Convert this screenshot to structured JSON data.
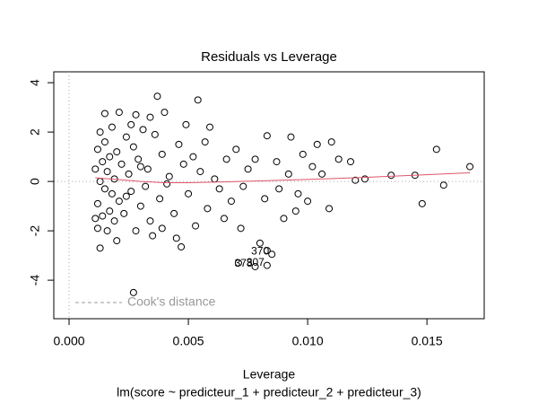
{
  "chart_data": {
    "type": "scatter",
    "title": "Residuals vs Leverage",
    "x_label": "Leverage",
    "subtitle": "lm(score ~ predicteur_1 + predicteur_2 + predicteur_3)",
    "x": [
      0.0037,
      0.0054,
      0.0015,
      0.0021,
      0.0028,
      0.004,
      0.0049,
      0.0059,
      0.0083,
      0.0093,
      0.0104,
      0.011,
      0.0154,
      0.0168,
      0.0145,
      0.0135,
      0.0124,
      0.012,
      0.0157,
      0.0148,
      0.0109,
      0.0095,
      0.008,
      0.0085,
      0.0078,
      0.0083,
      0.0083,
      0.0027,
      0.0012,
      0.0013,
      0.002,
      0.0035,
      0.0047,
      0.0065,
      0.0072,
      0.009,
      0.01,
      0.0102,
      0.0092,
      0.0087,
      0.0098,
      0.0113,
      0.0118,
      0.0106,
      0.007,
      0.0066,
      0.0075,
      0.0063,
      0.0068,
      0.0058,
      0.0055,
      0.0052,
      0.005,
      0.0046,
      0.0044,
      0.0042,
      0.0039,
      0.0038,
      0.0036,
      0.0034,
      0.0033,
      0.0032,
      0.0031,
      0.003,
      0.0029,
      0.0028,
      0.0027,
      0.0026,
      0.0025,
      0.0024,
      0.0023,
      0.0022,
      0.0021,
      0.002,
      0.0019,
      0.0019,
      0.0018,
      0.0018,
      0.0017,
      0.0017,
      0.0016,
      0.0016,
      0.0015,
      0.0015,
      0.0014,
      0.0014,
      0.0013,
      0.0013,
      0.0012,
      0.0012,
      0.0011,
      0.0011,
      0.0024,
      0.003,
      0.0041,
      0.0048,
      0.0053,
      0.0061,
      0.0057,
      0.0073,
      0.0078,
      0.0082,
      0.0088,
      0.0096,
      0.0026,
      0.0034,
      0.0045,
      0.0039,
      0.0071
    ],
    "values": [
      3.45,
      3.3,
      2.75,
      2.8,
      2.7,
      2.8,
      2.3,
      2.2,
      1.85,
      1.8,
      1.5,
      1.6,
      1.3,
      0.6,
      0.25,
      0.25,
      0.1,
      0.05,
      -0.15,
      -0.9,
      -1.1,
      -1.2,
      -2.5,
      -2.95,
      -3.45,
      -3.4,
      -2.8,
      -4.5,
      -1.9,
      -2.7,
      -2.4,
      -2.2,
      -2.65,
      -1.5,
      -1.9,
      -1.5,
      -0.8,
      0.6,
      0.3,
      0.8,
      1.1,
      0.9,
      0.8,
      0.3,
      1.3,
      0.9,
      0.5,
      -0.3,
      -0.8,
      -1.1,
      0.4,
      1.0,
      -0.5,
      1.5,
      -1.3,
      0.2,
      1.1,
      -0.7,
      1.9,
      -1.6,
      0.5,
      -0.2,
      2.1,
      -1.0,
      0.9,
      -2.0,
      1.4,
      -0.4,
      0.3,
      1.8,
      -1.3,
      0.7,
      -0.8,
      1.2,
      -1.6,
      0.1,
      2.2,
      -0.5,
      1.0,
      -1.2,
      0.4,
      -2.0,
      1.6,
      -0.3,
      0.8,
      -1.4,
      2.0,
      0.0,
      1.3,
      -0.9,
      0.5,
      -1.5,
      -0.6,
      0.6,
      -0.1,
      0.7,
      -1.8,
      0.1,
      1.6,
      -0.2,
      0.9,
      -0.7,
      -0.3,
      -0.5,
      2.3,
      2.6,
      -2.3,
      -1.9,
      -3.3
    ],
    "color": "#000000",
    "annotations": [
      {
        "label": "370",
        "x": 0.0085,
        "y": -2.95
      },
      {
        "label": "378",
        "x": 0.0078,
        "y": -3.45
      },
      {
        "label": "307",
        "x": 0.0083,
        "y": -3.4
      }
    ],
    "smooth": {
      "color": "#df536b",
      "x": [
        0.0011,
        0.002,
        0.003,
        0.004,
        0.005,
        0.006,
        0.008,
        0.01,
        0.012,
        0.014,
        0.0168
      ],
      "values": [
        0.15,
        0.08,
        0.0,
        -0.05,
        -0.05,
        -0.03,
        0.02,
        0.08,
        0.15,
        0.23,
        0.35
      ]
    },
    "legend": {
      "position": "bottomleft",
      "entries": [
        {
          "name": "Cook's distance",
          "color": "#999999",
          "dashed": true
        }
      ]
    },
    "reference_lines": {
      "x": 0,
      "y": 0
    },
    "xlim": [
      -0.00064,
      0.0174
    ],
    "ylim": [
      -5.56,
      4.44
    ],
    "xticks": [
      {
        "value": 0,
        "label": "0.000"
      },
      {
        "value": 0.005,
        "label": "0.005"
      },
      {
        "value": 0.01,
        "label": "0.010"
      },
      {
        "value": 0.015,
        "label": "0.015"
      }
    ],
    "yticks": [
      -4,
      -2,
      0,
      2,
      4
    ]
  }
}
